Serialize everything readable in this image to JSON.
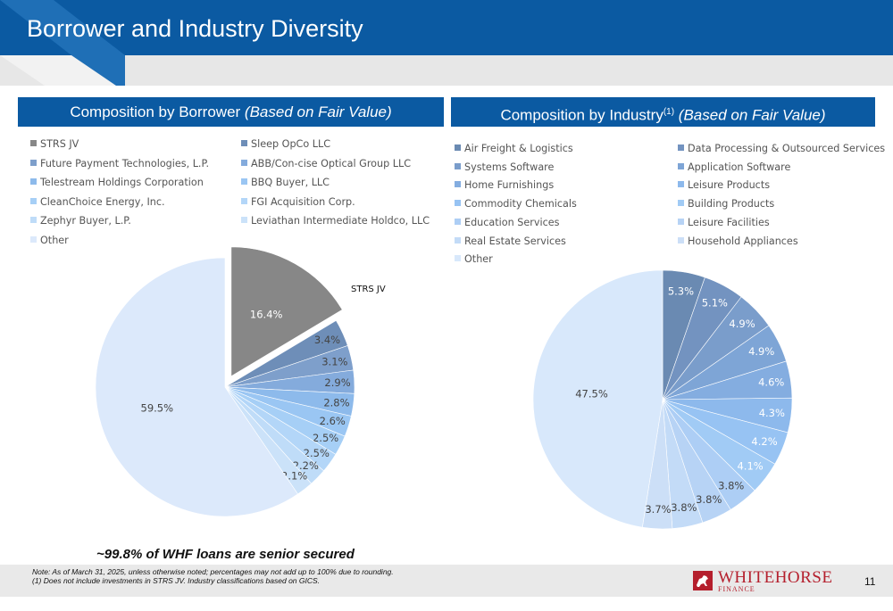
{
  "header": {
    "title": "Borrower and Industry Diversity"
  },
  "left_panel": {
    "title_plain": "Composition by Borrower",
    "title_italic": "(Based on Fair Value)"
  },
  "right_panel": {
    "title_plain": "Composition by Industry",
    "title_sup": "(1)",
    "title_italic": "(Based on Fair Value)"
  },
  "chart_data": [
    {
      "type": "pie",
      "title": "Composition by Borrower (Based on Fair Value)",
      "categories": [
        "STRS JV",
        "Sleep OpCo LLC",
        "Future Payment Technologies, L.P.",
        "ABB/Con-cise Optical Group LLC",
        "Telestream Holdings Corporation",
        "BBQ Buyer, LLC",
        "CleanChoice Energy, Inc.",
        "FGI Acquisition Corp.",
        "Zephyr Buyer, L.P.",
        "Leviathan Intermediate Holdco, LLC",
        "Other"
      ],
      "values": [
        16.4,
        3.4,
        3.1,
        2.9,
        2.8,
        2.6,
        2.5,
        2.5,
        2.2,
        2.1,
        59.5
      ],
      "labels": [
        "16.4%",
        "3.4%",
        "3.1%",
        "2.9%",
        "2.8%",
        "2.6%",
        "2.5%",
        "2.5%",
        "2.2%",
        "2.1%",
        "59.5%"
      ],
      "colors": [
        "#878787",
        "#6e8eb8",
        "#7e9fcb",
        "#84abdc",
        "#8dbaeb",
        "#9ac6f3",
        "#a6cff6",
        "#b3d6f8",
        "#bfdcf8",
        "#cbe2f9",
        "#dce9fb"
      ],
      "exploded": "STRS JV",
      "callout": "STRS JV",
      "legend": "top, two columns"
    },
    {
      "type": "pie",
      "title": "Composition by Industry (Based on Fair Value)",
      "categories": [
        "Air Freight & Logistics",
        "Data Processing & Outsourced Services",
        "Systems Software",
        "Application Software",
        "Home Furnishings",
        "Leisure Products",
        "Commodity Chemicals",
        "Building Products",
        "Education Services",
        "Leisure Facilities",
        "Real Estate Services",
        "Household Appliances",
        "Other"
      ],
      "values": [
        5.3,
        5.1,
        4.9,
        4.9,
        4.6,
        4.3,
        4.2,
        4.1,
        3.8,
        3.8,
        3.8,
        3.7,
        47.5
      ],
      "labels": [
        "5.3%",
        "5.1%",
        "4.9%",
        "4.9%",
        "4.6%",
        "4.3%",
        "4.2%",
        "4.1%",
        "3.8%",
        "3.8%",
        "3.8%",
        "3.7%",
        "47.5%"
      ],
      "colors": [
        "#6a8ab2",
        "#7393c0",
        "#7a9dcb",
        "#7ea5d6",
        "#84ade0",
        "#8db9ec",
        "#97c3f3",
        "#a1cbf5",
        "#adcef5",
        "#b7d3f5",
        "#c3dbf7",
        "#ccdff7",
        "#d8e8fb"
      ],
      "legend": "top, two columns"
    }
  ],
  "footnote_headline": "~99.8% of WHF loans are senior secured",
  "notes": [
    "Note: As of March 31, 2025, unless otherwise noted; percentages may not add up to 100% due to rounding.",
    "(1)    Does not include investments in STRS JV. Industry classifications based on GICS."
  ],
  "logo": {
    "word1": "WHITEHORSE",
    "word2": "FINANCE",
    "icon": "horse-logo-icon"
  },
  "page_number": "11"
}
